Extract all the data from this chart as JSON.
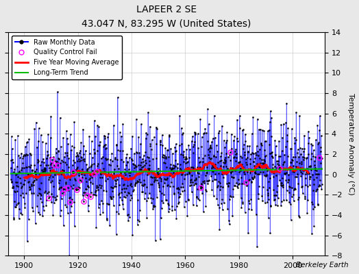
{
  "title": "LAPEER 2 SE",
  "subtitle": "43.047 N, 83.295 W (United States)",
  "ylabel": "Temperature Anomaly (°C)",
  "watermark": "Berkeley Earth",
  "year_start": 1895,
  "year_end": 2011,
  "ylim": [
    -8,
    14
  ],
  "yticks": [
    -8,
    -6,
    -4,
    -2,
    0,
    2,
    4,
    6,
    8,
    10,
    12,
    14
  ],
  "xticks": [
    1900,
    1920,
    1940,
    1960,
    1980,
    2000
  ],
  "raw_color": "#0000FF",
  "qc_color": "#FF00FF",
  "moving_avg_color": "#FF0000",
  "trend_color": "#00BB00",
  "background_color": "#E8E8E8",
  "plot_background": "#FFFFFF",
  "seed": 42
}
